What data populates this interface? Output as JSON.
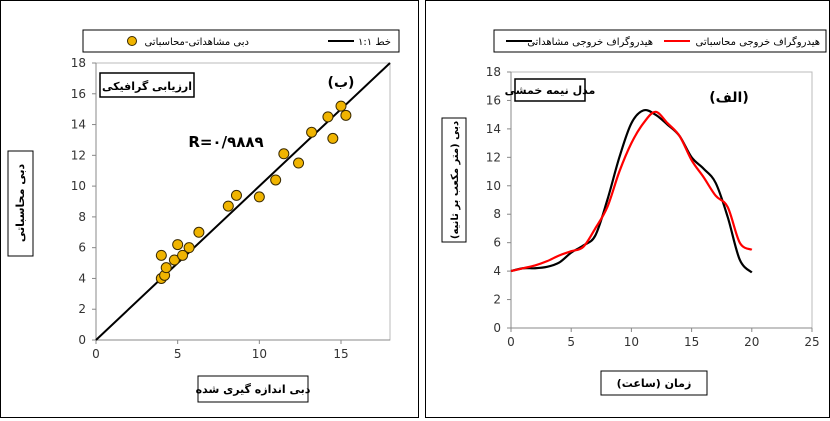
{
  "chart_data": [
    {
      "type": "scatter",
      "panel_label": "(ب)",
      "annotation_box": "ارزیابی گرافیکی",
      "r_text": "R=۰/۹۸۸۹",
      "xlabel": "دبی اندازه گیری شده",
      "ylabel": "دبی محاسباتی",
      "xlim": [
        0,
        18
      ],
      "ylim": [
        0,
        18
      ],
      "xticks": [
        0,
        5,
        10,
        15
      ],
      "yticks": [
        0,
        2,
        4,
        6,
        8,
        10,
        12,
        14,
        16,
        18
      ],
      "legend": {
        "position": "top",
        "entries": [
          "دبی مشاهداتی-محاسباتی",
          "خط ۱:۱"
        ]
      },
      "colors": {
        "points": "#f0b400",
        "point_edge": "#3a2a00",
        "line": "#000000"
      },
      "series": [
        {
          "name": "دبی مشاهداتی-محاسباتی",
          "x": [
            4.0,
            4.0,
            4.2,
            4.3,
            4.8,
            5.0,
            5.3,
            5.7,
            6.3,
            8.1,
            8.6,
            10.0,
            11.0,
            11.5,
            12.4,
            13.2,
            14.2,
            14.5,
            15.0,
            15.3
          ],
          "y": [
            4.0,
            5.5,
            4.2,
            4.7,
            5.2,
            6.2,
            5.5,
            6.0,
            7.0,
            8.7,
            9.4,
            9.3,
            10.4,
            12.1,
            11.5,
            13.5,
            14.5,
            13.1,
            15.2,
            14.6
          ]
        },
        {
          "name": "خط ۱:۱",
          "x": [
            0,
            18
          ],
          "y": [
            0,
            18
          ]
        }
      ]
    },
    {
      "type": "line",
      "panel_label": "(الف)",
      "annotation_box": "مدل نیمه خمشی",
      "xlabel": "زمان (ساعت)",
      "ylabel": "دبی (متر مکعب بر ثانیه)",
      "xlim": [
        0,
        25
      ],
      "ylim": [
        0,
        18
      ],
      "xticks": [
        0,
        5,
        10,
        15,
        20,
        25
      ],
      "yticks": [
        0,
        2,
        4,
        6,
        8,
        10,
        12,
        14,
        16,
        18
      ],
      "legend": {
        "position": "top",
        "entries": [
          "هیدروگراف خروجی مشاهداتی",
          "هیدروگراف خروجی محاسباتی"
        ]
      },
      "colors": {
        "observed": "#000000",
        "computed": "#ff0000"
      },
      "series": [
        {
          "name": "هیدروگراف خروجی مشاهداتی",
          "x": [
            0,
            1,
            2,
            3,
            4,
            5,
            6,
            7,
            8,
            9,
            10,
            11,
            12,
            13,
            14,
            15,
            16,
            17,
            18,
            19,
            20
          ],
          "y": [
            4.0,
            4.2,
            4.2,
            4.3,
            4.6,
            5.3,
            5.8,
            6.5,
            9.0,
            12.0,
            14.4,
            15.3,
            15.0,
            14.3,
            13.5,
            12.0,
            11.2,
            10.2,
            7.8,
            4.8,
            3.9
          ]
        },
        {
          "name": "هیدروگراف خروجی محاسباتی",
          "x": [
            0,
            1,
            2,
            3,
            4,
            5,
            6,
            7,
            8,
            9,
            10,
            11,
            12,
            13,
            14,
            15,
            16,
            17,
            18,
            19,
            20
          ],
          "y": [
            4.0,
            4.2,
            4.4,
            4.7,
            5.1,
            5.4,
            5.7,
            7.0,
            8.5,
            11.0,
            13.0,
            14.4,
            15.2,
            14.4,
            13.5,
            11.8,
            10.6,
            9.3,
            8.5,
            6.0,
            5.5
          ]
        }
      ]
    }
  ]
}
